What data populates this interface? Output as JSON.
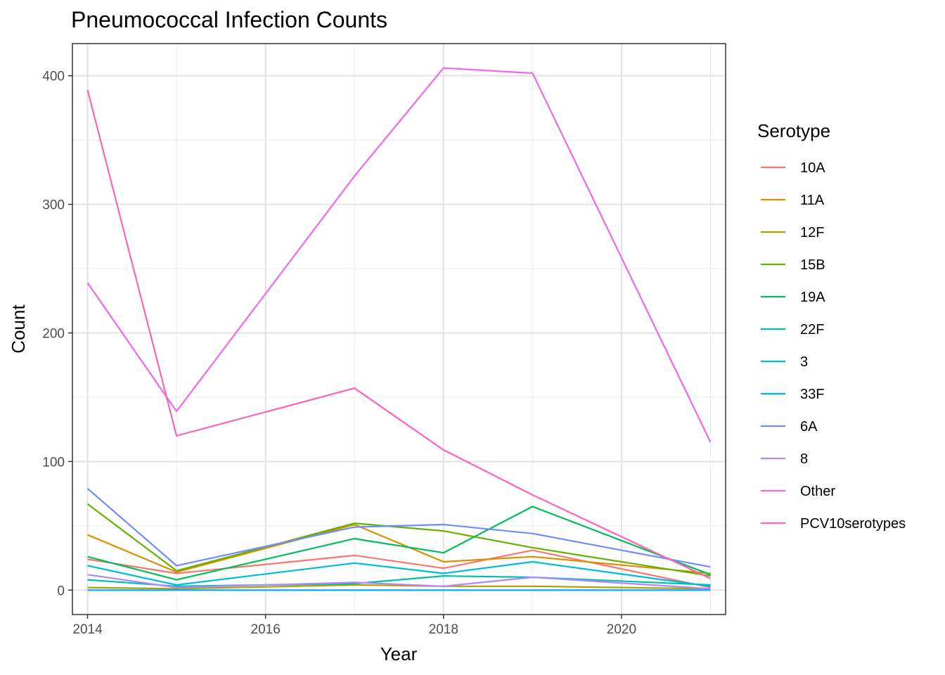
{
  "chart_data": {
    "type": "line",
    "title": "Pneumococcal Infection Counts",
    "xlabel": "Year",
    "ylabel": "Count",
    "xlim": [
      2013.83,
      2021.17
    ],
    "ylim": [
      -19,
      425
    ],
    "x_ticks": [
      2014,
      2016,
      2018,
      2020
    ],
    "x_tick_labels": [
      "2014",
      "2016",
      "2018",
      "2020"
    ],
    "x_minor_ticks": [
      2015,
      2017,
      2019,
      2021
    ],
    "y_ticks": [
      0,
      100,
      200,
      300,
      400
    ],
    "y_tick_labels": [
      "0",
      "100",
      "200",
      "300",
      "400"
    ],
    "y_minor_ticks": [
      50,
      150,
      250,
      350
    ],
    "grid": true,
    "legend_title": "Serotype",
    "legend_position": "right",
    "x": [
      2014,
      2015,
      2017,
      2018,
      2019,
      2021
    ],
    "series": [
      {
        "name": "10A",
        "color": "#F8766D",
        "values": [
          24,
          13,
          27,
          17,
          31,
          2
        ]
      },
      {
        "name": "11A",
        "color": "#DB8E00",
        "values": [
          43,
          14,
          51,
          22,
          26,
          13
        ]
      },
      {
        "name": "12F",
        "color": "#AEA200",
        "values": [
          2,
          1,
          4,
          3,
          3,
          1
        ]
      },
      {
        "name": "15B",
        "color": "#64B200",
        "values": [
          67,
          15,
          52,
          46,
          33,
          11
        ]
      },
      {
        "name": "19A",
        "color": "#00BD5C",
        "values": [
          26,
          8,
          40,
          29,
          65,
          12
        ]
      },
      {
        "name": "22F",
        "color": "#00C1A7",
        "values": [
          8,
          3,
          5,
          11,
          10,
          4
        ]
      },
      {
        "name": "3",
        "color": "#00BADE",
        "values": [
          19,
          4,
          21,
          13,
          22,
          3
        ]
      },
      {
        "name": "33F",
        "color": "#00A6FF",
        "values": [
          0,
          0,
          0,
          0,
          0,
          0
        ]
      },
      {
        "name": "6A",
        "color": "#6E8CFF",
        "values": [
          79,
          19,
          49,
          51,
          44,
          18
        ]
      },
      {
        "name": "8",
        "color": "#B385FF",
        "values": [
          12,
          2,
          6,
          3,
          10,
          1
        ]
      },
      {
        "name": "Other",
        "color": "#EF67EB",
        "values": [
          239,
          139,
          322,
          406,
          402,
          115
        ]
      },
      {
        "name": "PCV10serotypes",
        "color": "#FF63B6",
        "values": [
          389,
          120,
          157,
          109,
          74,
          9
        ]
      }
    ]
  }
}
